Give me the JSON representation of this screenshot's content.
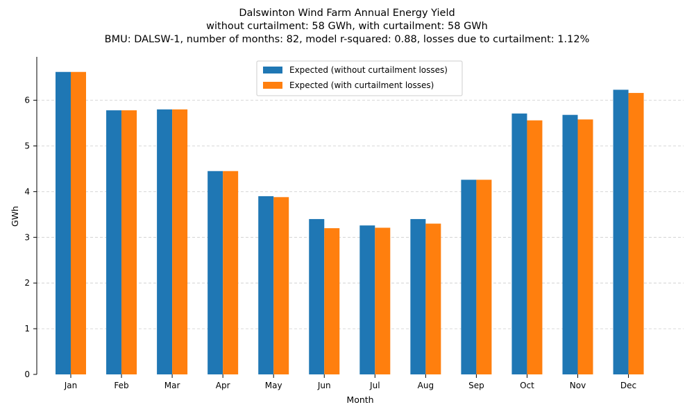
{
  "chart_data": {
    "type": "bar",
    "title_lines": [
      "Dalswinton Wind Farm Annual Energy Yield",
      "without curtailment: 58 GWh, with curtailment: 58 GWh",
      "BMU: DALSW-1, number of months: 82, model r-squared: 0.88, losses due to curtailment: 1.12%"
    ],
    "xlabel": "Month",
    "ylabel": "GWh",
    "ylim": [
      0,
      6.95
    ],
    "yticks": [
      0,
      1,
      2,
      3,
      4,
      5,
      6
    ],
    "grid": "horizontal dashed",
    "legend_position": "top-center",
    "categories": [
      "Jan",
      "Feb",
      "Mar",
      "Apr",
      "May",
      "Jun",
      "Jul",
      "Aug",
      "Sep",
      "Oct",
      "Nov",
      "Dec"
    ],
    "series": [
      {
        "name": "Expected (without curtailment losses)",
        "color": "#1f77b4",
        "values": [
          6.62,
          5.78,
          5.8,
          4.45,
          3.9,
          3.4,
          3.26,
          3.4,
          4.26,
          5.71,
          5.68,
          6.23
        ]
      },
      {
        "name": "Expected (with curtailment losses)",
        "color": "#ff7f0e",
        "values": [
          6.62,
          5.78,
          5.8,
          4.45,
          3.88,
          3.2,
          3.21,
          3.3,
          4.26,
          5.56,
          5.58,
          6.16
        ]
      }
    ]
  }
}
